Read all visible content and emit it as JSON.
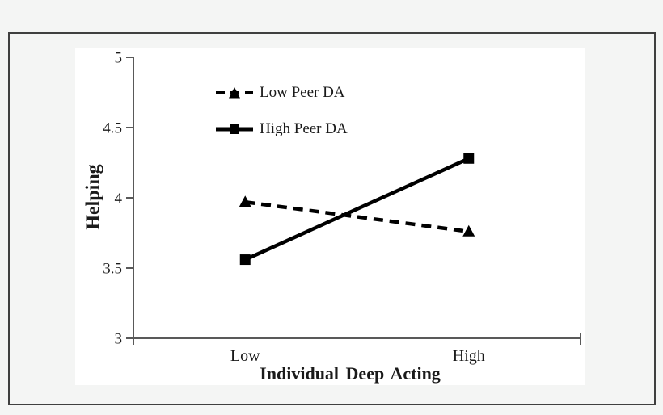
{
  "chart_data": {
    "type": "line",
    "title": "",
    "xlabel": "Individual Deep Acting",
    "ylabel": "Helping",
    "categories": [
      "Low",
      "High"
    ],
    "series": [
      {
        "name": "Low Peer DA",
        "values": [
          3.97,
          3.76
        ],
        "line_style": "dashed",
        "marker": "triangle",
        "color": "#000000"
      },
      {
        "name": "High Peer DA",
        "values": [
          3.56,
          4.28
        ],
        "line_style": "solid",
        "marker": "square",
        "color": "#000000"
      }
    ],
    "ylim": [
      3,
      5
    ],
    "yticks": [
      3,
      3.5,
      4,
      4.5,
      5
    ],
    "ytick_labels": [
      "3",
      "3.5",
      "4",
      "4.5",
      "5"
    ],
    "grid": false,
    "legend_position": "inside-top-left"
  },
  "colors": {
    "page_background": "#f4f5f4",
    "chart_background": "#ffffff",
    "frame_border": "#3f3f3f",
    "axis": "#595959",
    "text": "#1a1a1a",
    "series": "#000000"
  }
}
